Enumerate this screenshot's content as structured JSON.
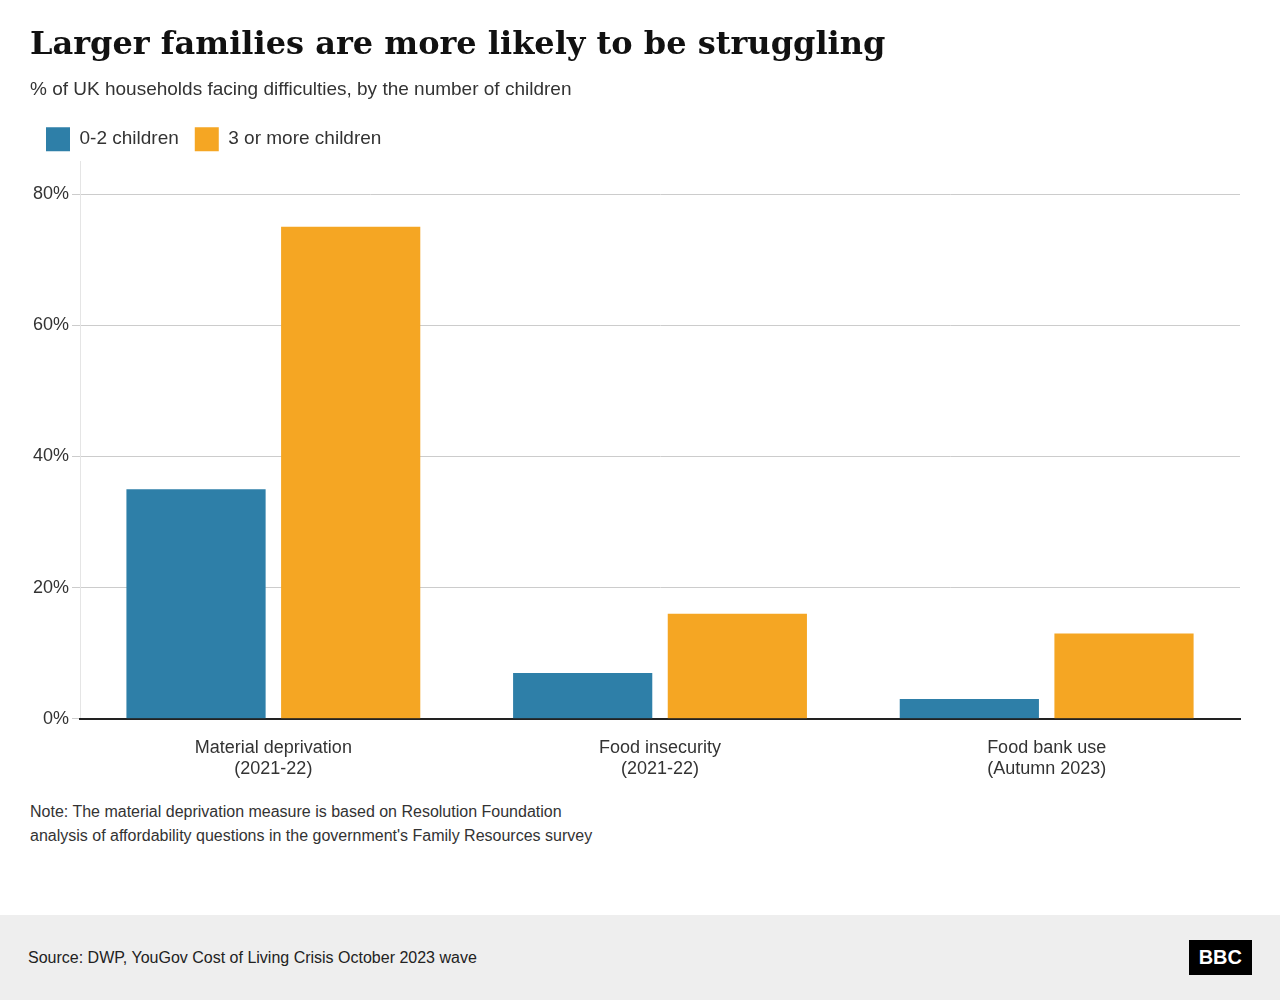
{
  "chart_data": {
    "type": "bar",
    "title": "Larger families are more likely to be struggling",
    "subtitle": "% of UK households facing difficulties, by the number of children",
    "categories": [
      "Material deprivation\n(2021-22)",
      "Food insecurity\n(2021-22)",
      "Food bank use\n(Autumn 2023)"
    ],
    "series": [
      {
        "name": "0-2 children",
        "color": "#2e7fa8",
        "values": [
          35,
          7,
          3
        ]
      },
      {
        "name": "3 or more children",
        "color": "#f5a623",
        "values": [
          75,
          16,
          13
        ]
      }
    ],
    "ylim": [
      0,
      85
    ],
    "yticks": [
      {
        "value": 0,
        "label": "0%"
      },
      {
        "value": 20,
        "label": "20%"
      },
      {
        "value": 40,
        "label": "40%"
      },
      {
        "value": 60,
        "label": "60%"
      },
      {
        "value": 80,
        "label": "80%"
      }
    ],
    "grid": true,
    "legend": "top-left",
    "note": [
      "Note: The material deprivation measure is based on Resolution Foundation",
      "analysis of affordability questions in the government's Family Resources survey"
    ],
    "source": "Source: DWP, YouGov Cost of Living Crisis October 2023 wave",
    "logo": "BBC"
  }
}
